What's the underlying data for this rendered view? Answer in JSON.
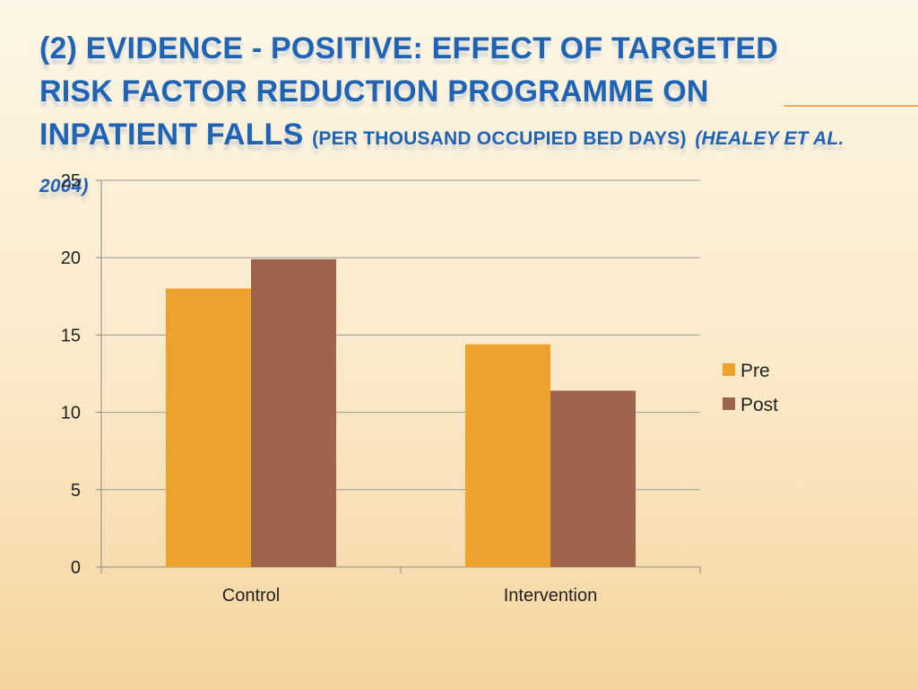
{
  "title": {
    "main": "(2) Evidence - Positive: Effect of targeted risk factor reduction programme on inpatient falls",
    "sub": "(per thousand occupied bed days)",
    "cite": "(Healey et al. 2004)"
  },
  "chart_data": {
    "type": "bar",
    "title": "",
    "xlabel": "",
    "ylabel": "",
    "categories": [
      "Control",
      "Intervention"
    ],
    "series": [
      {
        "name": "Pre",
        "values": [
          18.0,
          14.4
        ],
        "color": "#eda22e"
      },
      {
        "name": "Post",
        "values": [
          19.9,
          11.4
        ],
        "color": "#a0634c"
      }
    ],
    "ylim": [
      0,
      25
    ],
    "yticks": [
      0,
      5,
      10,
      15,
      20,
      25
    ],
    "ytick_labels": [
      "0",
      "5",
      "10",
      "15",
      "20",
      "25"
    ],
    "grid": true,
    "legend_position": "right"
  }
}
